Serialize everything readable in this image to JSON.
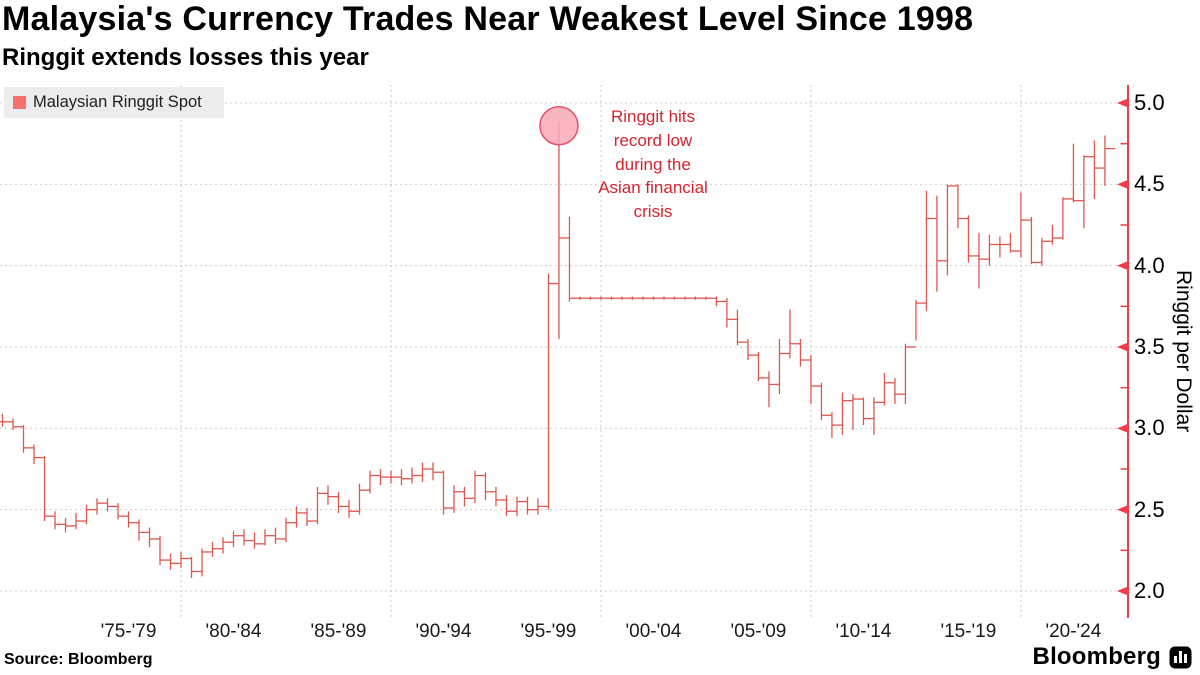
{
  "header": {
    "title": "Malaysia's Currency Trades Near Weakest Level Since 1998",
    "subtitle": "Ringgit extends losses this year"
  },
  "legend": {
    "label": "Malaysian Ringgit Spot"
  },
  "annotation": {
    "lines": [
      "Ringgit hits",
      "record low",
      "during the",
      "Asian financial",
      "crisis"
    ],
    "marker_year": 1998.0,
    "marker_value": 4.86
  },
  "y_axis": {
    "title": "Ringgit per Dollar",
    "tick_labels": [
      "5.0",
      "4.5",
      "4.0",
      "3.5",
      "3.0",
      "2.5",
      "2.0"
    ],
    "tick_values": [
      5.0,
      4.5,
      4.0,
      3.5,
      3.0,
      2.5,
      2.0
    ],
    "minor_tick_values": [
      4.75,
      4.25,
      3.75,
      3.25,
      2.75,
      2.25
    ]
  },
  "x_axis": {
    "labels": [
      {
        "text": "'75-'79",
        "year": 1977.5
      },
      {
        "text": "'80-'84",
        "year": 1982.5
      },
      {
        "text": "'85-'89",
        "year": 1987.5
      },
      {
        "text": "'90-'94",
        "year": 1992.5
      },
      {
        "text": "'95-'99",
        "year": 1997.5
      },
      {
        "text": "'00-'04",
        "year": 2002.5
      },
      {
        "text": "'05-'09",
        "year": 2007.5
      },
      {
        "text": "'10-'14",
        "year": 2012.5
      },
      {
        "text": "'15-'19",
        "year": 2017.5
      },
      {
        "text": "'20-'24",
        "year": 2022.5
      }
    ],
    "gridline_years": [
      1980,
      1990,
      2000,
      2010,
      2020
    ]
  },
  "footer": {
    "source": "Source: Bloomberg",
    "logo": "Bloomberg"
  },
  "colors": {
    "series": "#e0574f",
    "axis": "#f53d49",
    "gridline": "#cccccc",
    "annotation_text": "#d8232f",
    "marker_fill": "#f8a9b7",
    "marker_stroke": "#e5506b",
    "legend_swatch": "#f4716f",
    "legend_bg": "#ececec"
  },
  "chart_data": {
    "type": "bar",
    "subtype": "high-low-close",
    "title": "Malaysian Ringgit Spot",
    "ylabel": "Ringgit per Dollar",
    "x_unit": "decimal year, semiannual bars [t, high, low, close]",
    "xlim": [
      1971.38,
      2025.1
    ],
    "ylim": [
      2.0,
      5.0
    ],
    "grid": true,
    "legend_position": "top-left",
    "points": [
      [
        1971.5,
        3.09,
        3.01,
        3.04
      ],
      [
        1972.0,
        3.06,
        2.99,
        3.01
      ],
      [
        1972.5,
        3.02,
        2.85,
        2.88
      ],
      [
        1973.0,
        2.9,
        2.78,
        2.82
      ],
      [
        1973.5,
        2.83,
        2.43,
        2.46
      ],
      [
        1974.0,
        2.49,
        2.38,
        2.41
      ],
      [
        1974.5,
        2.45,
        2.36,
        2.4
      ],
      [
        1975.0,
        2.48,
        2.38,
        2.43
      ],
      [
        1975.5,
        2.53,
        2.41,
        2.5
      ],
      [
        1976.0,
        2.57,
        2.47,
        2.54
      ],
      [
        1976.5,
        2.57,
        2.49,
        2.52
      ],
      [
        1977.0,
        2.54,
        2.44,
        2.46
      ],
      [
        1977.5,
        2.49,
        2.39,
        2.42
      ],
      [
        1978.0,
        2.44,
        2.31,
        2.36
      ],
      [
        1978.5,
        2.39,
        2.27,
        2.32
      ],
      [
        1979.0,
        2.34,
        2.16,
        2.19
      ],
      [
        1979.5,
        2.23,
        2.13,
        2.17
      ],
      [
        1980.0,
        2.24,
        2.14,
        2.2
      ],
      [
        1980.5,
        2.21,
        2.08,
        2.12
      ],
      [
        1981.0,
        2.26,
        2.09,
        2.24
      ],
      [
        1981.5,
        2.3,
        2.21,
        2.26
      ],
      [
        1982.0,
        2.33,
        2.23,
        2.3
      ],
      [
        1982.5,
        2.37,
        2.27,
        2.34
      ],
      [
        1983.0,
        2.38,
        2.28,
        2.31
      ],
      [
        1983.5,
        2.36,
        2.26,
        2.29
      ],
      [
        1984.0,
        2.38,
        2.28,
        2.34
      ],
      [
        1984.5,
        2.39,
        2.29,
        2.32
      ],
      [
        1985.0,
        2.45,
        2.3,
        2.42
      ],
      [
        1985.5,
        2.52,
        2.39,
        2.48
      ],
      [
        1986.0,
        2.51,
        2.4,
        2.43
      ],
      [
        1986.5,
        2.64,
        2.41,
        2.6
      ],
      [
        1987.0,
        2.65,
        2.53,
        2.58
      ],
      [
        1987.5,
        2.61,
        2.48,
        2.52
      ],
      [
        1988.0,
        2.56,
        2.45,
        2.49
      ],
      [
        1988.5,
        2.66,
        2.47,
        2.62
      ],
      [
        1989.0,
        2.74,
        2.6,
        2.71
      ],
      [
        1989.5,
        2.75,
        2.65,
        2.7
      ],
      [
        1990.0,
        2.74,
        2.66,
        2.7
      ],
      [
        1990.5,
        2.75,
        2.65,
        2.69
      ],
      [
        1991.0,
        2.76,
        2.66,
        2.71
      ],
      [
        1991.5,
        2.79,
        2.67,
        2.75
      ],
      [
        1992.0,
        2.79,
        2.68,
        2.73
      ],
      [
        1992.5,
        2.74,
        2.47,
        2.51
      ],
      [
        1993.0,
        2.65,
        2.48,
        2.61
      ],
      [
        1993.5,
        2.64,
        2.52,
        2.57
      ],
      [
        1994.0,
        2.74,
        2.54,
        2.71
      ],
      [
        1994.5,
        2.73,
        2.56,
        2.61
      ],
      [
        1995.0,
        2.64,
        2.52,
        2.56
      ],
      [
        1995.5,
        2.59,
        2.46,
        2.49
      ],
      [
        1996.0,
        2.58,
        2.46,
        2.55
      ],
      [
        1996.5,
        2.58,
        2.47,
        2.5
      ],
      [
        1997.0,
        2.57,
        2.47,
        2.52
      ],
      [
        1997.5,
        3.95,
        2.5,
        3.89
      ],
      [
        1998.0,
        4.885,
        3.55,
        4.17
      ],
      [
        1998.5,
        4.3,
        3.78,
        3.8
      ],
      [
        1999.0,
        3.81,
        3.79,
        3.8
      ],
      [
        1999.5,
        3.81,
        3.79,
        3.8
      ],
      [
        2000.0,
        3.81,
        3.79,
        3.8
      ],
      [
        2000.5,
        3.81,
        3.79,
        3.8
      ],
      [
        2001.0,
        3.81,
        3.79,
        3.8
      ],
      [
        2001.5,
        3.81,
        3.79,
        3.8
      ],
      [
        2002.0,
        3.81,
        3.79,
        3.8
      ],
      [
        2002.5,
        3.81,
        3.79,
        3.8
      ],
      [
        2003.0,
        3.81,
        3.79,
        3.8
      ],
      [
        2003.5,
        3.81,
        3.79,
        3.8
      ],
      [
        2004.0,
        3.81,
        3.79,
        3.8
      ],
      [
        2004.5,
        3.81,
        3.79,
        3.8
      ],
      [
        2005.0,
        3.81,
        3.79,
        3.8
      ],
      [
        2005.5,
        3.81,
        3.75,
        3.78
      ],
      [
        2006.0,
        3.8,
        3.62,
        3.67
      ],
      [
        2006.5,
        3.73,
        3.51,
        3.53
      ],
      [
        2007.0,
        3.55,
        3.42,
        3.45
      ],
      [
        2007.5,
        3.47,
        3.29,
        3.31
      ],
      [
        2008.0,
        3.35,
        3.13,
        3.27
      ],
      [
        2008.5,
        3.55,
        3.21,
        3.46
      ],
      [
        2009.0,
        3.73,
        3.43,
        3.52
      ],
      [
        2009.5,
        3.55,
        3.38,
        3.42
      ],
      [
        2010.0,
        3.45,
        3.15,
        3.26
      ],
      [
        2010.5,
        3.28,
        3.05,
        3.08
      ],
      [
        2011.0,
        3.1,
        2.94,
        3.02
      ],
      [
        2011.5,
        3.22,
        2.96,
        3.17
      ],
      [
        2012.0,
        3.21,
        2.99,
        3.18
      ],
      [
        2012.5,
        3.19,
        3.02,
        3.06
      ],
      [
        2013.0,
        3.19,
        2.96,
        3.16
      ],
      [
        2013.5,
        3.34,
        3.14,
        3.28
      ],
      [
        2014.0,
        3.31,
        3.15,
        3.21
      ],
      [
        2014.5,
        3.52,
        3.15,
        3.5
      ],
      [
        2015.0,
        3.79,
        3.54,
        3.77
      ],
      [
        2015.5,
        4.46,
        3.72,
        4.29
      ],
      [
        2016.0,
        4.43,
        3.84,
        4.03
      ],
      [
        2016.5,
        4.5,
        3.94,
        4.49
      ],
      [
        2017.0,
        4.5,
        4.23,
        4.29
      ],
      [
        2017.5,
        4.31,
        4.02,
        4.06
      ],
      [
        2018.0,
        4.2,
        3.86,
        4.04
      ],
      [
        2018.5,
        4.19,
        4.0,
        4.13
      ],
      [
        2019.0,
        4.18,
        4.05,
        4.13
      ],
      [
        2019.5,
        4.2,
        4.08,
        4.09
      ],
      [
        2020.0,
        4.45,
        4.05,
        4.28
      ],
      [
        2020.5,
        4.3,
        4.01,
        4.02
      ],
      [
        2021.0,
        4.17,
        4.0,
        4.15
      ],
      [
        2021.5,
        4.25,
        4.13,
        4.17
      ],
      [
        2022.0,
        4.42,
        4.16,
        4.41
      ],
      [
        2022.5,
        4.75,
        4.39,
        4.4
      ],
      [
        2023.0,
        4.68,
        4.23,
        4.67
      ],
      [
        2023.5,
        4.77,
        4.41,
        4.6
      ],
      [
        2024.0,
        4.8,
        4.49,
        4.72
      ]
    ]
  }
}
